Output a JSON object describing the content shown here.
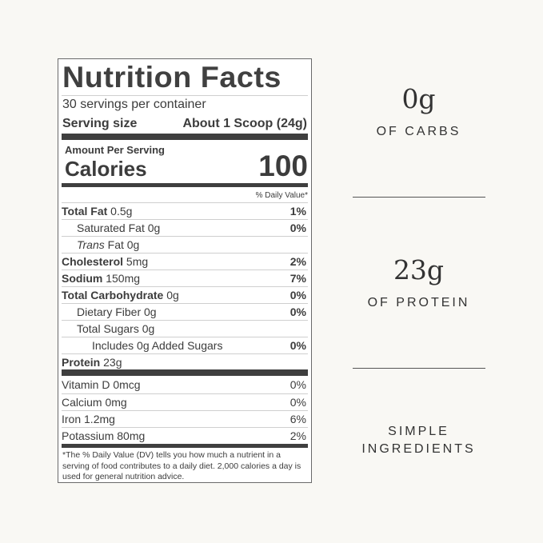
{
  "label": {
    "title": "Nutrition Facts",
    "servings": "30 servings per container",
    "serving_size_label": "Serving size",
    "serving_size_value": "About 1 Scoop (24g)",
    "amount_per_serving": "Amount Per Serving",
    "calories_label": "Calories",
    "calories_value": "100",
    "dv_header": "% Daily Value*",
    "nutrients": [
      {
        "name": "Total Fat",
        "amount": " 0.5g",
        "dv": "1%"
      },
      {
        "name": "Saturated Fat 0g",
        "amount": "",
        "dv": "0%"
      },
      {
        "name": "Trans",
        "amount": " Fat 0g",
        "dv": ""
      },
      {
        "name": "Cholesterol",
        "amount": " 5mg",
        "dv": "2%"
      },
      {
        "name": "Sodium",
        "amount": " 150mg",
        "dv": "7%"
      },
      {
        "name": "Total Carbohydrate",
        "amount": " 0g",
        "dv": "0%"
      },
      {
        "name": "Dietary Fiber 0g",
        "amount": "",
        "dv": "0%"
      },
      {
        "name": "Total Sugars 0g",
        "amount": "",
        "dv": ""
      },
      {
        "name": "Includes 0g Added Sugars",
        "amount": "",
        "dv": "0%"
      },
      {
        "name": "Protein",
        "amount": " 23g",
        "dv": ""
      }
    ],
    "vitamins": [
      {
        "name": "Vitamin D 0mcg",
        "dv": "0%"
      },
      {
        "name": "Calcium 0mg",
        "dv": "0%"
      },
      {
        "name": "Iron 1.2mg",
        "dv": "6%"
      },
      {
        "name": "Potassium 80mg",
        "dv": "2%"
      }
    ],
    "footnote": "*The % Daily Value (DV) tells you how much a nutrient in a serving of food contributes to a daily diet. 2,000 calories a day is used for general nutrition advice."
  },
  "highlights": [
    {
      "value": "0g",
      "caption": "OF CARBS"
    },
    {
      "value": "23g",
      "caption": "OF PROTEIN"
    },
    {
      "value": "",
      "caption_line1": "SIMPLE",
      "caption_line2": "INGREDIENTS"
    }
  ]
}
